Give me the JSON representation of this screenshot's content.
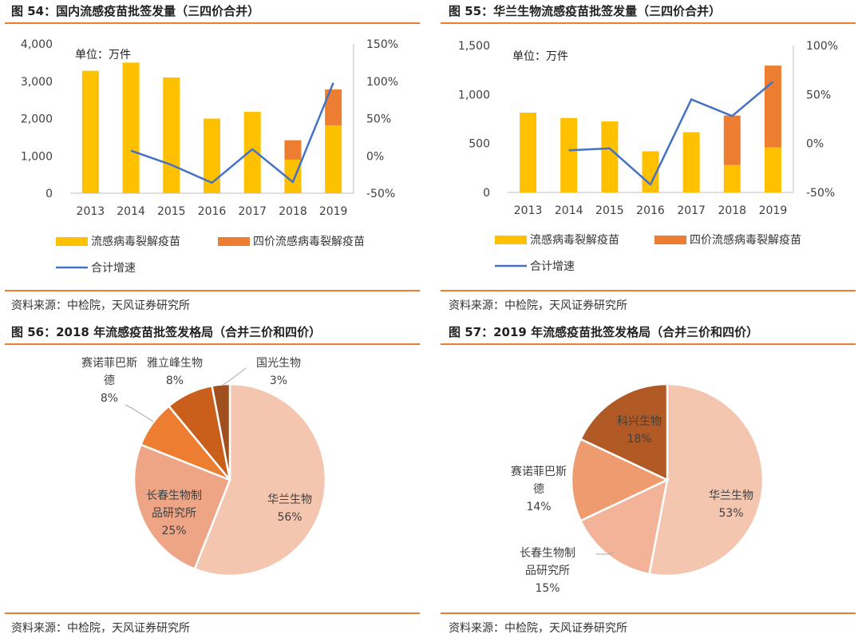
{
  "colors": {
    "yellow": "#ffc000",
    "orange": "#ed7d31",
    "line": "#4472c4",
    "rule": "#ed7d31"
  },
  "panels": [
    {
      "title": "图 54：国内流感疫苗批签发量（三四价合并）",
      "source": "资料来源：中检院，天风证券研究所"
    },
    {
      "title": "图 55：华兰生物流感疫苗批签发量（三四价合并）",
      "source": "资料来源：中检院，天风证券研究所"
    },
    {
      "title": "图 56：2018 年流感疫苗批签发格局（合并三价和四价）",
      "source": "资料来源：中检院，天风证券研究所"
    },
    {
      "title": "图 57：2019 年流感疫苗批签发格局（合并三价和四价）",
      "source": "资料来源：中检院，天风证券研究所"
    }
  ],
  "chart_data": [
    {
      "type": "bar",
      "stacked": true,
      "title": "图 54：国内流感疫苗批签发量（三四价合并）",
      "unit_label": "单位：万件",
      "categories": [
        "2013",
        "2014",
        "2015",
        "2016",
        "2017",
        "2018",
        "2019"
      ],
      "series": [
        {
          "name": "流感病毒裂解疫苗",
          "kind": "bar",
          "color": "#ffc000",
          "values": [
            3280,
            3500,
            3100,
            2000,
            2180,
            900,
            1820
          ]
        },
        {
          "name": "四价流感病毒裂解疫苗",
          "kind": "bar",
          "color": "#ed7d31",
          "values": [
            0,
            0,
            0,
            0,
            0,
            520,
            960
          ]
        },
        {
          "name": "合计增速",
          "kind": "line",
          "axis": "right",
          "color": "#4472c4",
          "values": [
            null,
            0.07,
            -0.12,
            -0.36,
            0.09,
            -0.35,
            0.98
          ]
        }
      ],
      "ylim": [
        0,
        4000
      ],
      "yticks": [
        "4,000",
        "3,000",
        "2,000",
        "1,000",
        "0"
      ],
      "y2lim": [
        -0.5,
        1.5
      ],
      "y2ticks": [
        "150%",
        "100%",
        "50%",
        "0%",
        "-50%"
      ],
      "legend_position": "bottom"
    },
    {
      "type": "bar",
      "stacked": true,
      "title": "图 55：华兰生物流感疫苗批签发量（三四价合并）",
      "unit_label": "单位：万件",
      "categories": [
        "2013",
        "2014",
        "2015",
        "2016",
        "2017",
        "2018",
        "2019"
      ],
      "series": [
        {
          "name": "流感病毒裂解疫苗",
          "kind": "bar",
          "color": "#ffc000",
          "values": [
            815,
            760,
            725,
            420,
            615,
            280,
            460
          ]
        },
        {
          "name": "四价流感病毒裂解疫苗",
          "kind": "bar",
          "color": "#ed7d31",
          "values": [
            0,
            0,
            0,
            0,
            0,
            505,
            835
          ]
        },
        {
          "name": "合计增速",
          "kind": "line",
          "axis": "right",
          "color": "#4472c4",
          "values": [
            null,
            -0.07,
            -0.05,
            -0.42,
            0.45,
            0.28,
            0.63
          ]
        }
      ],
      "ylim": [
        0,
        1500
      ],
      "yticks": [
        "1,500",
        "1,000",
        "500",
        "0"
      ],
      "y2lim": [
        -0.5,
        1.0
      ],
      "y2ticks": [
        "100%",
        "50%",
        "0%",
        "-50%"
      ],
      "legend_position": "bottom"
    },
    {
      "type": "pie",
      "title": "图 56：2018 年流感疫苗批签发格局（合并三价和四价）",
      "slices": [
        {
          "lines": [
            "华兰生物",
            "56%"
          ],
          "value": 56,
          "color": "#f4c6b0"
        },
        {
          "lines": [
            "长春生物制",
            "品研究所",
            "25%"
          ],
          "value": 25,
          "color": "#eea585"
        },
        {
          "lines": [
            "赛诺菲巴斯",
            "德",
            "8%"
          ],
          "value": 8,
          "color": "#ed7d31"
        },
        {
          "lines": [
            "雅立峰生物",
            "8%"
          ],
          "value": 8,
          "color": "#c95f1a"
        },
        {
          "lines": [
            "国光生物",
            "3%"
          ],
          "value": 3,
          "color": "#a14f1f"
        }
      ]
    },
    {
      "type": "pie",
      "title": "图 57：2019 年流感疫苗批签发格局（合并三价和四价）",
      "slices": [
        {
          "lines": [
            "华兰生物",
            "53%"
          ],
          "value": 53,
          "color": "#f4c6b0"
        },
        {
          "lines": [
            "长春生物制",
            "品研究所",
            "15%"
          ],
          "value": 15,
          "color": "#f2b399"
        },
        {
          "lines": [
            "赛诺菲巴斯",
            "德",
            "14%"
          ],
          "value": 14,
          "color": "#ee9b70"
        },
        {
          "lines": [
            "科兴生物",
            "18%"
          ],
          "value": 18,
          "color": "#b15a25"
        }
      ]
    }
  ]
}
